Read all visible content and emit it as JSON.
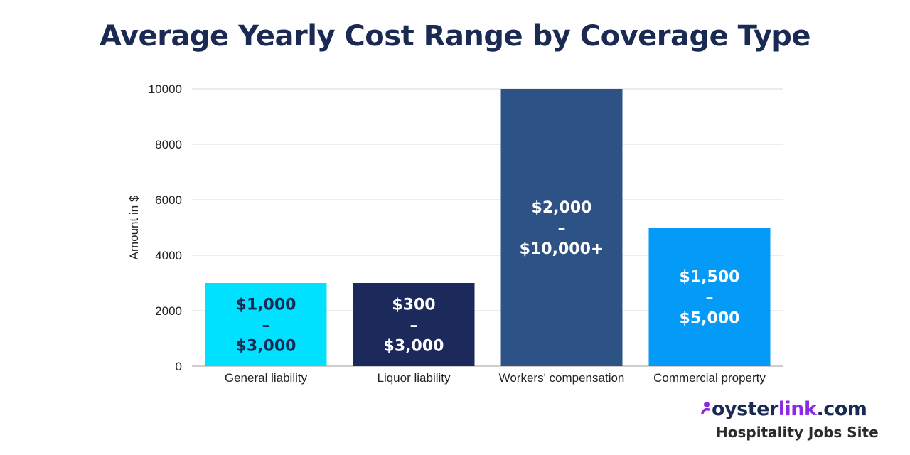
{
  "chart_data": {
    "type": "bar",
    "title": "Average Yearly Cost Range by Coverage Type",
    "xlabel": "",
    "ylabel": "Amount in $",
    "ylim": [
      0,
      10000
    ],
    "yticks": [
      0,
      2000,
      4000,
      6000,
      8000,
      10000
    ],
    "grid": true,
    "legend": "none",
    "categories": [
      "General liability",
      "Liquor liability",
      "Workers' compensation",
      "Commercial property"
    ],
    "values": [
      3000,
      3000,
      10000,
      5000
    ],
    "colors": [
      "#00e1ff",
      "#1b2a5a",
      "#2d5386",
      "#039bf7"
    ],
    "data_labels": [
      [
        "$1,000",
        "–",
        "$3,000"
      ],
      [
        "$300",
        "–",
        "$3,000"
      ],
      [
        "$2,000",
        "–",
        "$10,000+"
      ],
      [
        "$1,500",
        "–",
        "$5,000"
      ]
    ]
  },
  "brand": {
    "prefix": "oyster",
    "highlight": "link",
    "suffix": ".com",
    "tagline": "Hospitality Jobs Site",
    "icon": "oyster-swirl-icon"
  }
}
